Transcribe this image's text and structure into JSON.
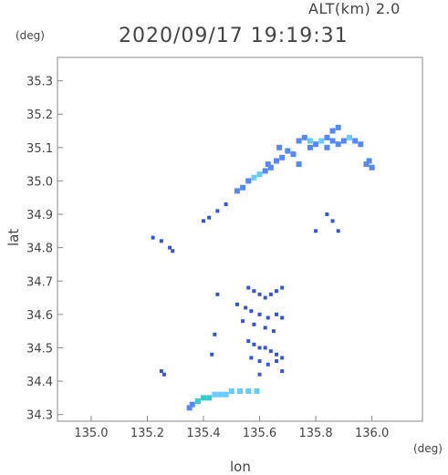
{
  "header": {
    "altitude_label": "ALT(km) 2.0",
    "timestamp": "2020/09/17 19:19:31"
  },
  "chart_data": {
    "type": "scatter",
    "xlabel": "lon",
    "ylabel": "lat",
    "x_unit": "(deg)",
    "y_unit": "(deg)",
    "xlim": [
      134.88,
      136.18
    ],
    "ylim": [
      34.28,
      35.37
    ],
    "x_ticks": [
      "135.0",
      "135.2",
      "135.4",
      "135.6",
      "135.8",
      "136.0"
    ],
    "y_ticks": [
      "34.3",
      "34.4",
      "34.5",
      "34.6",
      "34.7",
      "34.8",
      "34.9",
      "35.0",
      "35.1",
      "35.2",
      "35.3"
    ],
    "grid": false,
    "colors": {
      "weak": "#3355dd",
      "moderate": "#5588ff",
      "strong": "#66ccff",
      "echo_core": "#99ddff",
      "cyan_band": "#33cccc",
      "axis": "#888888"
    },
    "series": [
      {
        "values": [
          [
            135.74,
            35.12,
            2
          ],
          [
            135.76,
            35.13,
            2
          ],
          [
            135.78,
            35.12,
            3
          ],
          [
            135.8,
            35.11,
            2
          ],
          [
            135.82,
            35.12,
            3
          ],
          [
            135.84,
            35.13,
            2
          ],
          [
            135.86,
            35.12,
            2
          ],
          [
            135.88,
            35.11,
            2
          ],
          [
            135.9,
            35.12,
            2
          ],
          [
            135.92,
            35.13,
            3
          ],
          [
            135.94,
            35.12,
            2
          ],
          [
            135.96,
            35.11,
            2
          ],
          [
            135.86,
            35.15,
            2
          ],
          [
            135.88,
            35.16,
            2
          ],
          [
            135.84,
            35.1,
            2
          ],
          [
            135.78,
            35.1,
            2
          ],
          [
            135.72,
            35.08,
            2
          ],
          [
            135.7,
            35.09,
            2
          ],
          [
            135.68,
            35.07,
            2
          ],
          [
            135.66,
            35.06,
            2
          ],
          [
            135.64,
            35.04,
            2
          ],
          [
            135.62,
            35.03,
            2
          ],
          [
            135.6,
            35.02,
            3
          ],
          [
            135.58,
            35.01,
            3
          ],
          [
            135.56,
            35.0,
            2
          ],
          [
            135.54,
            34.98,
            2
          ],
          [
            135.52,
            34.97,
            2
          ],
          [
            135.63,
            35.05,
            2
          ],
          [
            135.67,
            35.1,
            2
          ],
          [
            135.74,
            35.05,
            2
          ],
          [
            135.98,
            35.05,
            2
          ],
          [
            136.0,
            35.04,
            2
          ],
          [
            135.99,
            35.06,
            2
          ],
          [
            135.4,
            34.88,
            1
          ],
          [
            135.42,
            34.89,
            1
          ],
          [
            135.45,
            34.91,
            1
          ],
          [
            135.48,
            34.93,
            1
          ],
          [
            135.22,
            34.83,
            1
          ],
          [
            135.25,
            34.82,
            1
          ],
          [
            135.28,
            34.8,
            1
          ],
          [
            135.29,
            34.79,
            1
          ],
          [
            135.84,
            34.9,
            1
          ],
          [
            135.86,
            34.88,
            1
          ],
          [
            135.88,
            34.85,
            1
          ],
          [
            135.8,
            34.85,
            1
          ],
          [
            135.56,
            34.68,
            1
          ],
          [
            135.58,
            34.67,
            1
          ],
          [
            135.6,
            34.66,
            1
          ],
          [
            135.62,
            34.65,
            1
          ],
          [
            135.64,
            34.66,
            1
          ],
          [
            135.66,
            34.67,
            1
          ],
          [
            135.68,
            34.68,
            1
          ],
          [
            135.55,
            34.62,
            1
          ],
          [
            135.57,
            34.61,
            1
          ],
          [
            135.6,
            34.6,
            1
          ],
          [
            135.63,
            34.59,
            1
          ],
          [
            135.66,
            34.6,
            1
          ],
          [
            135.68,
            34.59,
            1
          ],
          [
            135.52,
            34.63,
            1
          ],
          [
            135.54,
            34.58,
            1
          ],
          [
            135.58,
            34.57,
            1
          ],
          [
            135.62,
            34.56,
            1
          ],
          [
            135.65,
            34.55,
            1
          ],
          [
            135.56,
            34.52,
            1
          ],
          [
            135.58,
            34.51,
            1
          ],
          [
            135.6,
            34.5,
            1
          ],
          [
            135.62,
            34.5,
            1
          ],
          [
            135.64,
            34.49,
            1
          ],
          [
            135.66,
            34.48,
            1
          ],
          [
            135.68,
            34.47,
            1
          ],
          [
            135.57,
            34.47,
            1
          ],
          [
            135.6,
            34.46,
            1
          ],
          [
            135.63,
            34.45,
            1
          ],
          [
            135.66,
            34.46,
            1
          ],
          [
            135.68,
            34.43,
            1
          ],
          [
            135.6,
            34.42,
            1
          ],
          [
            135.43,
            34.48,
            1
          ],
          [
            135.44,
            34.54,
            1
          ],
          [
            135.45,
            34.66,
            1
          ],
          [
            135.25,
            34.43,
            1
          ],
          [
            135.26,
            34.42,
            1
          ],
          [
            135.36,
            34.33,
            2
          ],
          [
            135.38,
            34.34,
            4
          ],
          [
            135.4,
            34.35,
            4
          ],
          [
            135.42,
            34.35,
            4
          ],
          [
            135.44,
            34.36,
            3
          ],
          [
            135.46,
            34.36,
            3
          ],
          [
            135.48,
            34.36,
            3
          ],
          [
            135.5,
            34.37,
            3
          ],
          [
            135.53,
            34.37,
            3
          ],
          [
            135.56,
            34.37,
            3
          ],
          [
            135.59,
            34.37,
            3
          ],
          [
            135.35,
            34.32,
            2
          ]
        ]
      }
    ]
  }
}
